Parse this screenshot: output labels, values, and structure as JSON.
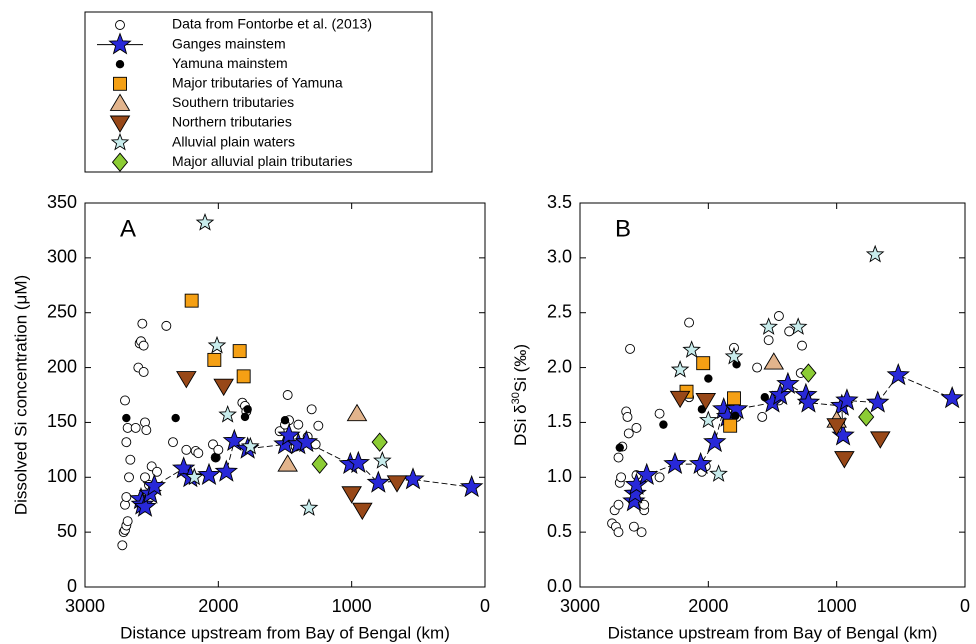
{
  "legend": {
    "corner": "top-left"
  },
  "chart_data": [
    {
      "type": "scatter",
      "panel_label": "A",
      "xlabel": "Distance upstream from Bay of Bengal (km)",
      "ylabel": "Dissolved Si concentration (μM)",
      "xlim": [
        3000,
        0
      ],
      "xticks": [
        3000,
        2000,
        1000,
        0
      ],
      "ylim": [
        0,
        350
      ],
      "yticks": [
        0,
        50,
        100,
        150,
        200,
        250,
        300,
        350
      ],
      "series": [
        {
          "name": "Data from Fontorbe et al. (2013)",
          "marker": "circle-open",
          "color": "#ffffff",
          "x": [
            2720,
            2710,
            2700,
            2690,
            2680,
            2700,
            2690,
            2670,
            2660,
            2690,
            2680,
            2700,
            2620,
            2600,
            2590,
            2580,
            2570,
            2560,
            2560,
            2550,
            2540,
            2550,
            2520,
            2500,
            2460,
            2390,
            2340,
            2240,
            2170,
            2150,
            2040,
            2020,
            2000,
            1820,
            1800,
            1790,
            1480,
            1470,
            1400,
            1300,
            1250,
            1270,
            1330,
            1540,
            1500,
            1420
          ],
          "values": [
            38,
            50,
            52,
            56,
            60,
            75,
            82,
            100,
            116,
            132,
            145,
            170,
            145,
            200,
            222,
            224,
            240,
            196,
            220,
            150,
            143,
            100,
            93,
            110,
            105,
            238,
            132,
            125,
            124,
            122,
            130,
            118,
            125,
            168,
            165,
            160,
            175,
            152,
            148,
            162,
            147,
            130,
            137,
            142,
            148,
            128
          ]
        },
        {
          "name": "Ganges mainstem",
          "marker": "star",
          "color": "#2828d8",
          "line": "dashed",
          "x": [
            2580,
            2570,
            2550,
            2510,
            2480,
            2260,
            2210,
            2070,
            1940,
            1880,
            1780,
            1500,
            1470,
            1400,
            1340,
            1010,
            950,
            800,
            540,
            100
          ],
          "values": [
            80,
            75,
            73,
            85,
            92,
            108,
            100,
            102,
            105,
            133,
            126,
            130,
            138,
            130,
            132,
            112,
            113,
            95,
            98,
            91
          ]
        },
        {
          "name": "Yamuna mainstem",
          "marker": "dot",
          "color": "#000000",
          "x": [
            2690,
            2320,
            2020,
            1800,
            1780,
            1500
          ],
          "values": [
            154,
            154,
            118,
            155,
            162,
            152
          ]
        },
        {
          "name": "Major tributaries of Yamuna",
          "marker": "square",
          "color": "#f5a014",
          "x": [
            2200,
            2030,
            1840,
            1810
          ],
          "values": [
            261,
            207,
            215,
            192
          ]
        },
        {
          "name": "Southern tributaries",
          "marker": "triangle-up",
          "color": "#e2b48c",
          "x": [
            1480,
            960
          ],
          "values": [
            112,
            158
          ]
        },
        {
          "name": "Northern tributaries",
          "marker": "triangle-down",
          "color": "#984818",
          "x": [
            2240,
            1960,
            1000,
            920,
            660
          ],
          "values": [
            190,
            183,
            85,
            70,
            95
          ]
        },
        {
          "name": "Alluvial plain waters",
          "marker": "star-small",
          "color": "#c8ecec",
          "x": [
            2100,
            2010,
            1930,
            2180,
            1760,
            1320,
            770
          ],
          "values": [
            332,
            220,
            157,
            100,
            128,
            72,
            115
          ]
        },
        {
          "name": "Major alluvial plain tributaries",
          "marker": "diamond",
          "color": "#8ccc34",
          "x": [
            1240,
            790
          ],
          "values": [
            112,
            132
          ]
        }
      ]
    },
    {
      "type": "scatter",
      "panel_label": "B",
      "ylabel_parts": [
        "DSi δ",
        "30",
        "Si (‰)"
      ],
      "xlim": [
        3000,
        0
      ],
      "xticks": [
        3000,
        2000,
        1000,
        0
      ],
      "ylim": [
        0,
        3.5
      ],
      "yticks": [
        {
          "value": 0,
          "label": "0.0"
        },
        0.5,
        {
          "value": 1,
          "label": "1.0"
        },
        1.5,
        {
          "value": 2,
          "label": "2.0"
        },
        2.5,
        {
          "value": 3,
          "label": "3.0"
        },
        3.5
      ],
      "series": [
        {
          "marker": "circle-open",
          "color": "#ffffff",
          "x": [
            2750,
            2720,
            2700,
            2730,
            2700,
            2690,
            2680,
            2700,
            2670,
            2640,
            2630,
            2620,
            2610,
            2580,
            2560,
            2520,
            2500,
            2500,
            2560,
            2380,
            2380,
            2150,
            2150,
            2050,
            2020,
            1800,
            1850,
            1780,
            1620,
            1580,
            1530,
            1450,
            1370,
            1270,
            1280,
            1450
          ],
          "values": [
            0.58,
            0.55,
            0.5,
            0.7,
            0.75,
            0.95,
            1.0,
            1.18,
            1.28,
            1.6,
            1.55,
            1.4,
            2.17,
            0.55,
            1.02,
            0.5,
            0.7,
            0.75,
            1.45,
            1.58,
            1.0,
            2.41,
            1.73,
            1.05,
            1.1,
            2.18,
            1.62,
            1.55,
            2.0,
            1.55,
            2.25,
            2.47,
            2.33,
            2.2,
            1.95,
            1.7
          ]
        },
        {
          "marker": "star",
          "color": "#2828d8",
          "line": "dashed",
          "x": [
            2580,
            2570,
            2560,
            2480,
            2260,
            2060,
            1950,
            1880,
            1850,
            1780,
            1500,
            1440,
            1380,
            1240,
            1220,
            960,
            950,
            920,
            680,
            520,
            100
          ],
          "values": [
            0.78,
            0.85,
            0.93,
            1.02,
            1.12,
            1.12,
            1.32,
            1.62,
            1.55,
            1.62,
            1.68,
            1.75,
            1.85,
            1.75,
            1.68,
            1.65,
            1.38,
            1.7,
            1.68,
            1.93,
            1.72
          ]
        },
        {
          "marker": "dot",
          "color": "#000000",
          "x": [
            2690,
            2350,
            2000,
            2050,
            1780,
            1790,
            1560
          ],
          "values": [
            1.27,
            1.48,
            1.9,
            1.62,
            2.03,
            1.56,
            1.73
          ]
        },
        {
          "marker": "square",
          "color": "#f5a014",
          "x": [
            2170,
            2040,
            1830,
            1800
          ],
          "values": [
            1.78,
            2.04,
            1.47,
            1.72
          ]
        },
        {
          "marker": "triangle-up",
          "color": "#e2b48c",
          "x": [
            1490,
            1000
          ],
          "values": [
            2.05,
            1.52
          ]
        },
        {
          "marker": "triangle-down",
          "color": "#984818",
          "x": [
            2220,
            2020,
            1000,
            940,
            660
          ],
          "values": [
            1.72,
            1.7,
            1.47,
            1.17,
            1.35
          ]
        },
        {
          "marker": "star-small",
          "color": "#c8ecec",
          "x": [
            700,
            2220,
            2130,
            1920,
            1800,
            1530,
            1300,
            2000
          ],
          "values": [
            3.03,
            1.98,
            2.16,
            1.03,
            2.1,
            2.37,
            2.37,
            1.52
          ]
        },
        {
          "marker": "diamond",
          "color": "#8ccc34",
          "x": [
            1220,
            770
          ],
          "values": [
            1.95,
            1.55
          ]
        }
      ]
    }
  ]
}
